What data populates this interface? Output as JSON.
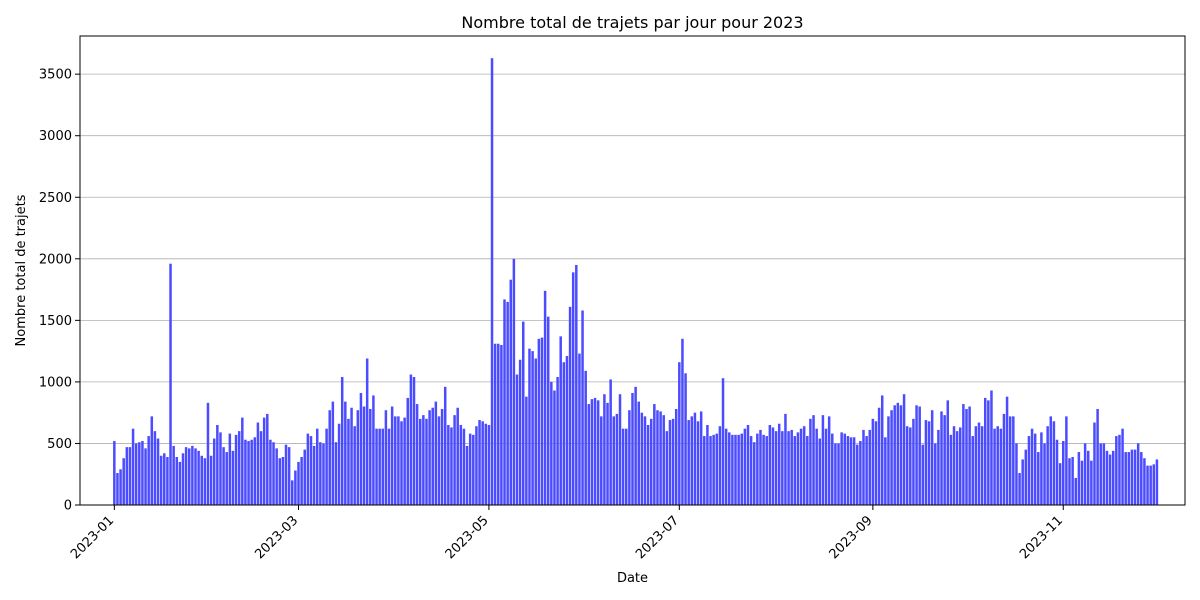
{
  "chart_data": {
    "type": "bar",
    "title": "Nombre total de trajets par jour pour 2023",
    "xlabel": "Date",
    "ylabel": "Nombre total de trajets",
    "x_start": "2023-01-01",
    "x_end": "2023-11-30",
    "xlim": [
      "2022-12-21",
      "2023-12-10"
    ],
    "ylim": [
      0,
      3810
    ],
    "yticks": [
      0,
      500,
      1000,
      1500,
      2000,
      2500,
      3000,
      3500
    ],
    "xticks": [
      "2023-01-01",
      "2023-03-01",
      "2023-05-01",
      "2023-07-01",
      "2023-09-01",
      "2023-11-01"
    ],
    "xtick_labels": [
      "2023-01",
      "2023-03",
      "2023-05",
      "2023-07",
      "2023-09",
      "2023-11"
    ],
    "grid": "y",
    "bar_color": "#4b4bff",
    "values": [
      520,
      260,
      290,
      380,
      470,
      470,
      620,
      500,
      510,
      520,
      460,
      560,
      720,
      600,
      540,
      400,
      420,
      390,
      1960,
      480,
      390,
      350,
      420,
      470,
      460,
      480,
      460,
      440,
      400,
      380,
      830,
      400,
      540,
      650,
      590,
      470,
      430,
      580,
      440,
      570,
      600,
      710,
      530,
      520,
      530,
      550,
      670,
      600,
      710,
      740,
      530,
      510,
      460,
      380,
      390,
      490,
      470,
      200,
      280,
      350,
      390,
      450,
      580,
      560,
      480,
      620,
      510,
      500,
      620,
      770,
      840,
      510,
      660,
      1040,
      840,
      700,
      790,
      640,
      770,
      910,
      800,
      1190,
      780,
      890,
      620,
      620,
      620,
      770,
      620,
      800,
      720,
      720,
      680,
      710,
      870,
      1060,
      1040,
      820,
      700,
      730,
      700,
      770,
      790,
      840,
      720,
      780,
      960,
      650,
      630,
      730,
      790,
      650,
      620,
      480,
      580,
      570,
      640,
      690,
      680,
      660,
      650,
      3630,
      1310,
      1310,
      1300,
      1670,
      1650,
      1830,
      2000,
      1060,
      1180,
      1490,
      880,
      1270,
      1250,
      1190,
      1350,
      1360,
      1740,
      1530,
      1000,
      930,
      1040,
      1370,
      1160,
      1210,
      1610,
      1890,
      1950,
      1230,
      1580,
      1090,
      820,
      860,
      870,
      850,
      720,
      900,
      830,
      1020,
      720,
      740,
      900,
      620,
      620,
      770,
      910,
      960,
      840,
      750,
      720,
      650,
      700,
      820,
      770,
      760,
      730,
      600,
      690,
      700,
      780,
      1160,
      1350,
      1070,
      690,
      720,
      750,
      680,
      760,
      560,
      650,
      560,
      570,
      580,
      640,
      1030,
      620,
      590,
      570,
      570,
      570,
      580,
      620,
      650,
      560,
      510,
      580,
      610,
      570,
      560,
      650,
      630,
      600,
      660,
      600,
      740,
      600,
      610,
      560,
      590,
      620,
      640,
      560,
      700,
      730,
      620,
      540,
      730,
      620,
      720,
      580,
      500,
      500,
      590,
      580,
      560,
      550,
      550,
      490,
      520,
      610,
      560,
      610,
      700,
      680,
      790,
      890,
      550,
      720,
      770,
      810,
      830,
      810,
      900,
      640,
      630,
      700,
      810,
      800,
      490,
      690,
      680,
      770,
      500,
      610,
      760,
      730,
      850,
      570,
      640,
      600,
      630,
      820,
      780,
      800,
      560,
      640,
      670,
      640,
      870,
      850,
      930,
      620,
      640,
      620,
      740,
      880,
      720,
      720,
      500,
      260,
      370,
      450,
      560,
      620,
      580,
      430,
      590,
      500,
      640,
      720,
      680,
      530,
      340,
      520,
      720,
      380,
      390,
      220,
      430,
      360,
      500,
      440,
      360,
      670,
      780,
      500,
      500,
      440,
      410,
      440,
      560,
      570,
      620,
      430,
      430,
      450,
      450,
      500,
      430,
      380,
      320,
      320,
      330,
      370
    ]
  }
}
